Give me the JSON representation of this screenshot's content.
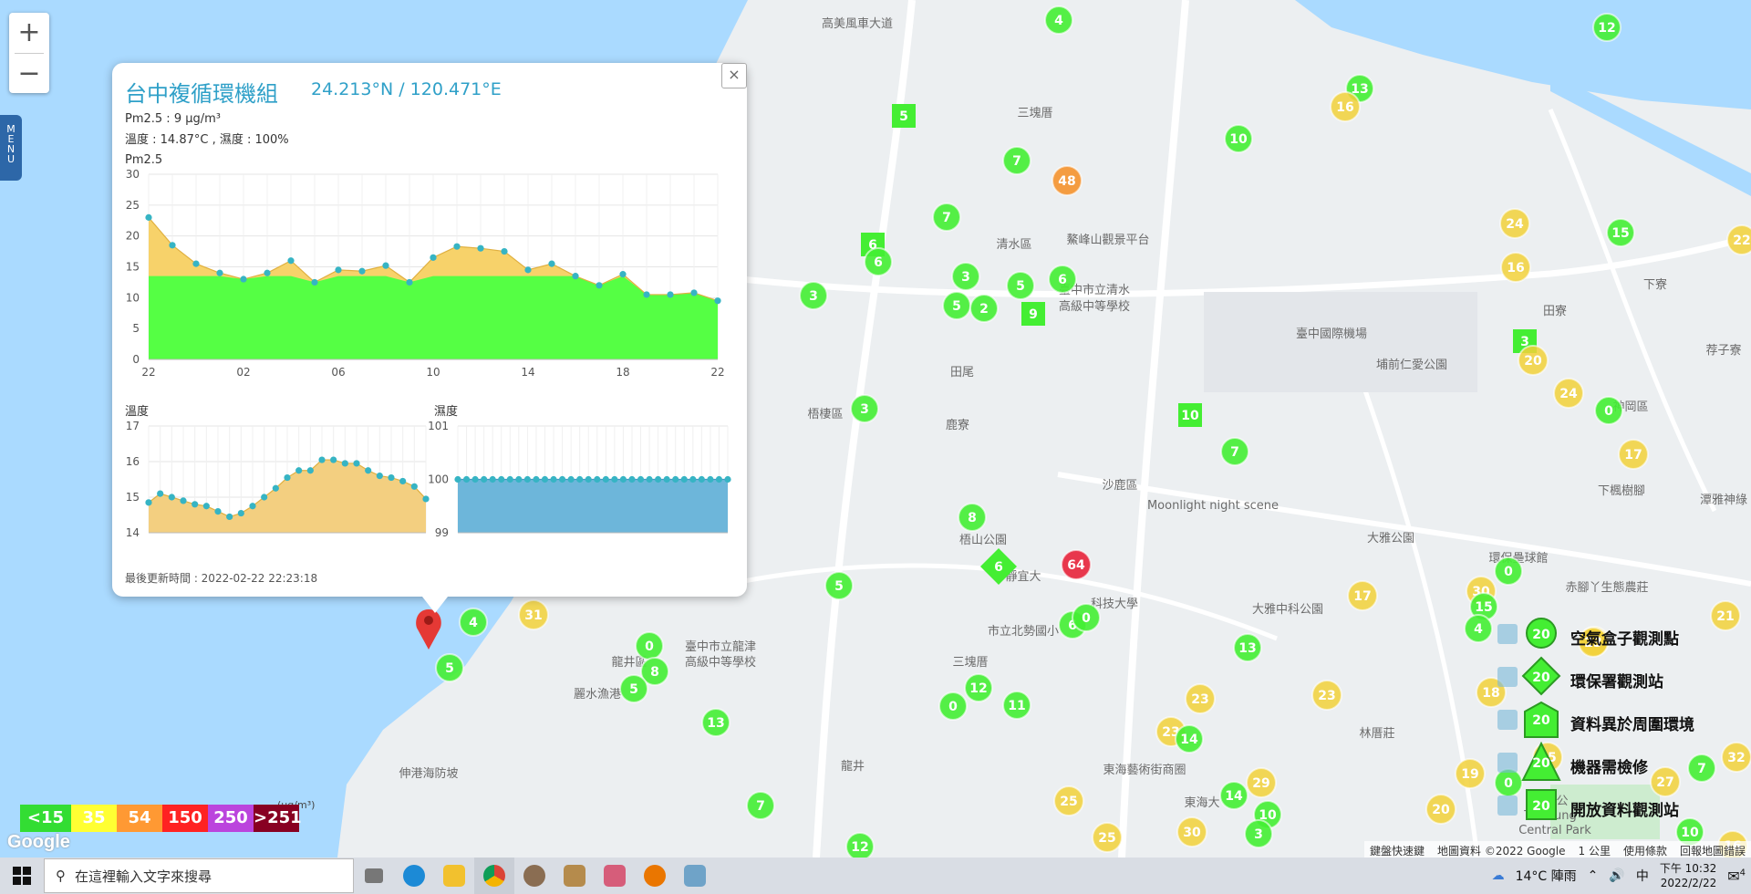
{
  "zoom": {
    "in_label": "+",
    "out_label": "−"
  },
  "menu": {
    "label": "M E N U"
  },
  "popup": {
    "close_label": "×",
    "title": "台中複循環機組",
    "coords": "24.213°N / 120.471°E",
    "pm25_line": "Pm2.5 : 9 μg/m³",
    "temp_hum_line": "溫度 : 14.87°C , 濕度 : 100%",
    "last_update": "最後更新時間 : 2022-02-22 22:23:18"
  },
  "chart_data": [
    {
      "type": "area",
      "title": "Pm2.5",
      "ylim": [
        0,
        30
      ],
      "yticks": [
        "0",
        "5",
        "10",
        "15",
        "20",
        "25",
        "30"
      ],
      "xticks": [
        "22",
        "02",
        "06",
        "10",
        "14",
        "18",
        "22"
      ],
      "series": [
        {
          "values": [
            23,
            18.5,
            15.5,
            14,
            13,
            14,
            16,
            12.5,
            14.5,
            14.3,
            15.2,
            12.5,
            16.5,
            18.3,
            18,
            17.5,
            14.5,
            15.5,
            13.5,
            12,
            13.8,
            10.5,
            10.5,
            10.8,
            9.5
          ]
        }
      ],
      "threshold": 13.5
    },
    {
      "type": "area",
      "title": "溫度",
      "ylim": [
        14,
        17
      ],
      "yticks": [
        "14",
        "15",
        "16",
        "17"
      ],
      "series": [
        {
          "values": [
            14.85,
            15.1,
            15.0,
            14.9,
            14.8,
            14.75,
            14.6,
            14.45,
            14.55,
            14.75,
            15.0,
            15.25,
            15.55,
            15.75,
            15.75,
            16.05,
            16.05,
            15.95,
            15.95,
            15.75,
            15.6,
            15.55,
            15.45,
            15.3,
            14.95
          ]
        }
      ]
    },
    {
      "type": "area",
      "title": "濕度",
      "ylim": [
        99,
        101
      ],
      "yticks": [
        "99",
        "100",
        "101"
      ],
      "series": [
        {
          "values": [
            100,
            100,
            100,
            100,
            100,
            100,
            100,
            100,
            100,
            100,
            100,
            100,
            100,
            100,
            100,
            100,
            100,
            100,
            100,
            100,
            100,
            100,
            100,
            100,
            100,
            100,
            100,
            100,
            100,
            100,
            100,
            100
          ]
        }
      ]
    }
  ],
  "map_labels": [
    {
      "text": "高美風車大道",
      "key": "a"
    },
    {
      "text": "三塊厝",
      "key": "b"
    },
    {
      "text": "清水區",
      "key": "c"
    },
    {
      "text": "鰲峰山觀景平台",
      "key": "d"
    },
    {
      "text": "臺中市立清水",
      "key": "e"
    },
    {
      "text": "高級中等學校",
      "key": "f"
    },
    {
      "text": "田尾",
      "key": "g"
    },
    {
      "text": "梧棲區",
      "key": "h"
    },
    {
      "text": "鹿寮",
      "key": "i"
    },
    {
      "text": "沙鹿區",
      "key": "j"
    },
    {
      "text": "Moonlight night scene",
      "key": "k"
    },
    {
      "text": "臺中國際機場",
      "key": "l"
    },
    {
      "text": "埔前仁愛公園",
      "key": "m"
    },
    {
      "text": "田寮",
      "key": "n"
    },
    {
      "text": "神岡區",
      "key": "o"
    },
    {
      "text": "大雅公園",
      "key": "p"
    },
    {
      "text": "環保壘球館",
      "key": "q"
    },
    {
      "text": "赤腳丫生態農莊",
      "key": "r"
    },
    {
      "text": "大雅中科公園",
      "key": "s"
    },
    {
      "text": "科技大學",
      "key": "t"
    },
    {
      "text": "市立北勢國小",
      "key": "u"
    },
    {
      "text": "三塊厝",
      "key": "v"
    },
    {
      "text": "靜宜大",
      "key": "w"
    },
    {
      "text": "梧山公園",
      "key": "x"
    },
    {
      "text": "龍井區",
      "key": "y"
    },
    {
      "text": "臺中市立龍津",
      "key": "z"
    },
    {
      "text": "高級中等學校",
      "key": "aa"
    },
    {
      "text": "麗水漁港",
      "key": "ab"
    },
    {
      "text": "林厝莊",
      "key": "ac"
    },
    {
      "text": "東海藝術街商圈",
      "key": "ad"
    },
    {
      "text": "東海大",
      "key": "ae"
    },
    {
      "text": "伸港海防坡",
      "key": "af"
    },
    {
      "text": "龍井",
      "key": "ag"
    },
    {
      "text": "中央公",
      "key": "ah"
    },
    {
      "text": "Taichung",
      "key": "ai"
    },
    {
      "text": "Central Park",
      "key": "aj"
    },
    {
      "text": "潭雅神綠",
      "key": "ak"
    },
    {
      "text": "下寮",
      "key": "al"
    },
    {
      "text": "下楓樹腳",
      "key": "am"
    },
    {
      "text": "荐子寮",
      "key": "an"
    }
  ],
  "markers": [
    {
      "v": "4",
      "c": "green",
      "s": "circle"
    },
    {
      "v": "12",
      "c": "green",
      "s": "circle"
    },
    {
      "v": "13",
      "c": "green",
      "s": "circle"
    },
    {
      "v": "16",
      "c": "yellow",
      "s": "circle"
    },
    {
      "v": "5",
      "c": "green",
      "s": "square"
    },
    {
      "v": "10",
      "c": "green",
      "s": "circle"
    },
    {
      "v": "7",
      "c": "green",
      "s": "circle"
    },
    {
      "v": "48",
      "c": "orange",
      "s": "circle"
    },
    {
      "v": "7",
      "c": "green",
      "s": "circle"
    },
    {
      "v": "6",
      "c": "green",
      "s": "square"
    },
    {
      "v": "6",
      "c": "green",
      "s": "circle"
    },
    {
      "v": "3",
      "c": "green",
      "s": "circle"
    },
    {
      "v": "3",
      "c": "green",
      "s": "circle"
    },
    {
      "v": "5",
      "c": "green",
      "s": "circle"
    },
    {
      "v": "5",
      "c": "green",
      "s": "circle"
    },
    {
      "v": "2",
      "c": "green",
      "s": "circle"
    },
    {
      "v": "6",
      "c": "green",
      "s": "circle"
    },
    {
      "v": "9",
      "c": "green",
      "s": "square"
    },
    {
      "v": "24",
      "c": "yellow",
      "s": "circle"
    },
    {
      "v": "15",
      "c": "green",
      "s": "circle"
    },
    {
      "v": "22",
      "c": "yellow",
      "s": "circle"
    },
    {
      "v": "16",
      "c": "yellow",
      "s": "circle"
    },
    {
      "v": "3",
      "c": "green",
      "s": "square"
    },
    {
      "v": "20",
      "c": "yellow",
      "s": "circle"
    },
    {
      "v": "24",
      "c": "yellow",
      "s": "circle"
    },
    {
      "v": "0",
      "c": "green",
      "s": "circle"
    },
    {
      "v": "17",
      "c": "yellow",
      "s": "circle"
    },
    {
      "v": "3",
      "c": "green",
      "s": "circle"
    },
    {
      "v": "10",
      "c": "green",
      "s": "square"
    },
    {
      "v": "7",
      "c": "green",
      "s": "circle"
    },
    {
      "v": "8",
      "c": "green",
      "s": "circle"
    },
    {
      "v": "64",
      "c": "red",
      "s": "circle"
    },
    {
      "v": "6",
      "c": "green",
      "s": "diamond"
    },
    {
      "v": "5",
      "c": "green",
      "s": "circle"
    },
    {
      "v": "6",
      "c": "green",
      "s": "circle"
    },
    {
      "v": "0",
      "c": "green",
      "s": "circle"
    },
    {
      "v": "31",
      "c": "yellow",
      "s": "circle"
    },
    {
      "v": "4",
      "c": "green",
      "s": "circle"
    },
    {
      "v": "5",
      "c": "green",
      "s": "circle"
    },
    {
      "v": "0",
      "c": "green",
      "s": "circle"
    },
    {
      "v": "8",
      "c": "green",
      "s": "circle"
    },
    {
      "v": "5",
      "c": "green",
      "s": "circle"
    },
    {
      "v": "13",
      "c": "green",
      "s": "circle"
    },
    {
      "v": "12",
      "c": "green",
      "s": "circle"
    },
    {
      "v": "0",
      "c": "green",
      "s": "circle"
    },
    {
      "v": "11",
      "c": "green",
      "s": "circle"
    },
    {
      "v": "13",
      "c": "green",
      "s": "circle"
    },
    {
      "v": "23",
      "c": "yellow",
      "s": "circle"
    },
    {
      "v": "23",
      "c": "yellow",
      "s": "circle"
    },
    {
      "v": "14",
      "c": "green",
      "s": "circle"
    },
    {
      "v": "25",
      "c": "yellow",
      "s": "circle"
    },
    {
      "v": "25",
      "c": "yellow",
      "s": "circle"
    },
    {
      "v": "30",
      "c": "yellow",
      "s": "circle"
    },
    {
      "v": "14",
      "c": "green",
      "s": "circle"
    },
    {
      "v": "29",
      "c": "yellow",
      "s": "circle"
    },
    {
      "v": "10",
      "c": "green",
      "s": "circle"
    },
    {
      "v": "3",
      "c": "green",
      "s": "circle"
    },
    {
      "v": "7",
      "c": "green",
      "s": "circle"
    },
    {
      "v": "12",
      "c": "green",
      "s": "circle"
    },
    {
      "v": "17",
      "c": "yellow",
      "s": "circle"
    },
    {
      "v": "0",
      "c": "green",
      "s": "circle"
    },
    {
      "v": "30",
      "c": "yellow",
      "s": "circle"
    },
    {
      "v": "15",
      "c": "green",
      "s": "circle"
    },
    {
      "v": "4",
      "c": "green",
      "s": "circle"
    },
    {
      "v": "23",
      "c": "yellow",
      "s": "circle"
    },
    {
      "v": "18",
      "c": "yellow",
      "s": "circle"
    },
    {
      "v": "19",
      "c": "yellow",
      "s": "circle"
    },
    {
      "v": "0",
      "c": "green",
      "s": "circle"
    },
    {
      "v": "20",
      "c": "yellow",
      "s": "circle"
    },
    {
      "v": "25",
      "c": "yellow",
      "s": "circle"
    },
    {
      "v": "27",
      "c": "yellow",
      "s": "circle"
    },
    {
      "v": "7",
      "c": "green",
      "s": "circle"
    },
    {
      "v": "32",
      "c": "yellow",
      "s": "circle"
    },
    {
      "v": "10",
      "c": "green",
      "s": "circle"
    },
    {
      "v": "21",
      "c": "yellow",
      "s": "circle"
    },
    {
      "v": "27",
      "c": "yellow",
      "s": "circle"
    },
    {
      "v": "23",
      "c": "yellow",
      "s": "circle"
    },
    {
      "v": "16",
      "c": "yellow",
      "s": "circle"
    }
  ],
  "legend": [
    {
      "label": "空氣盒子觀測點",
      "value": "20",
      "shape": "circle"
    },
    {
      "label": "環保署觀測站",
      "value": "20",
      "shape": "diamond"
    },
    {
      "label": "資料異於周圍環境",
      "value": "20",
      "shape": "house"
    },
    {
      "label": "機器需檢修",
      "value": "20",
      "shape": "triangle"
    },
    {
      "label": "開放資料觀測站",
      "value": "20",
      "shape": "square"
    }
  ],
  "aqi_scale": {
    "unit": "(μg/m³)",
    "items": [
      {
        "label": "<15",
        "color": "#33dd33"
      },
      {
        "label": "35",
        "color": "#ffff33"
      },
      {
        "label": "54",
        "color": "#ff9933"
      },
      {
        "label": "150",
        "color": "#ff2222"
      },
      {
        "label": "250",
        "color": "#bb44dd"
      },
      {
        "label": ">251",
        "color": "#880022"
      }
    ]
  },
  "google_logo": "Google",
  "attribution": [
    "鍵盤快速鍵",
    "地圖資料 ©2022 Google",
    "1 公里",
    "使用條款",
    "回報地圖錯誤"
  ],
  "taskbar": {
    "search_placeholder": "在這裡輸入文字來搜尋",
    "weather": "14°C 陣雨",
    "ime": "中",
    "time": "下午 10:32",
    "date": "2022/2/22",
    "notifications": "4"
  },
  "colors": {
    "green": "#44ee33",
    "yellow": "#f2d13a",
    "orange": "#f5922e",
    "red": "#e8223a",
    "water": "#aadaff",
    "land": "#eceff1"
  }
}
